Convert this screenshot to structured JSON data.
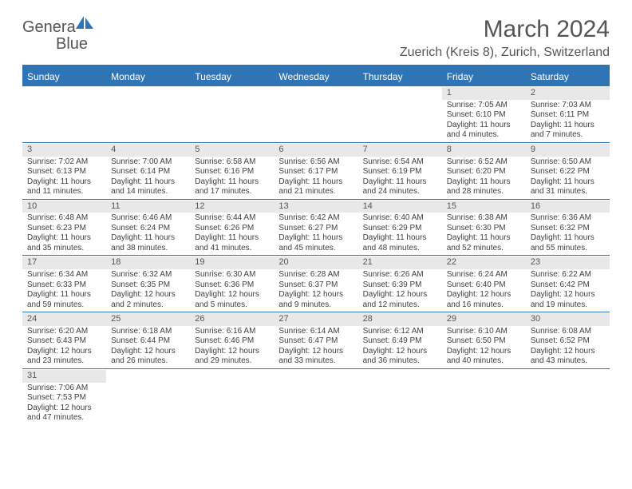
{
  "brand": {
    "name1": "Genera",
    "name2": "Blue"
  },
  "title": "March 2024",
  "location": "Zuerich (Kreis 8), Zurich, Switzerland",
  "colors": {
    "accent": "#2f74b5",
    "text": "#555555",
    "cellbg": "#e8e8e8"
  },
  "weekdays": [
    "Sunday",
    "Monday",
    "Tuesday",
    "Wednesday",
    "Thursday",
    "Friday",
    "Saturday"
  ],
  "weeks": [
    [
      null,
      null,
      null,
      null,
      null,
      {
        "n": "1",
        "sr": "Sunrise: 7:05 AM",
        "ss": "Sunset: 6:10 PM",
        "d1": "Daylight: 11 hours",
        "d2": "and 4 minutes."
      },
      {
        "n": "2",
        "sr": "Sunrise: 7:03 AM",
        "ss": "Sunset: 6:11 PM",
        "d1": "Daylight: 11 hours",
        "d2": "and 7 minutes."
      }
    ],
    [
      {
        "n": "3",
        "sr": "Sunrise: 7:02 AM",
        "ss": "Sunset: 6:13 PM",
        "d1": "Daylight: 11 hours",
        "d2": "and 11 minutes."
      },
      {
        "n": "4",
        "sr": "Sunrise: 7:00 AM",
        "ss": "Sunset: 6:14 PM",
        "d1": "Daylight: 11 hours",
        "d2": "and 14 minutes."
      },
      {
        "n": "5",
        "sr": "Sunrise: 6:58 AM",
        "ss": "Sunset: 6:16 PM",
        "d1": "Daylight: 11 hours",
        "d2": "and 17 minutes."
      },
      {
        "n": "6",
        "sr": "Sunrise: 6:56 AM",
        "ss": "Sunset: 6:17 PM",
        "d1": "Daylight: 11 hours",
        "d2": "and 21 minutes."
      },
      {
        "n": "7",
        "sr": "Sunrise: 6:54 AM",
        "ss": "Sunset: 6:19 PM",
        "d1": "Daylight: 11 hours",
        "d2": "and 24 minutes."
      },
      {
        "n": "8",
        "sr": "Sunrise: 6:52 AM",
        "ss": "Sunset: 6:20 PM",
        "d1": "Daylight: 11 hours",
        "d2": "and 28 minutes."
      },
      {
        "n": "9",
        "sr": "Sunrise: 6:50 AM",
        "ss": "Sunset: 6:22 PM",
        "d1": "Daylight: 11 hours",
        "d2": "and 31 minutes."
      }
    ],
    [
      {
        "n": "10",
        "sr": "Sunrise: 6:48 AM",
        "ss": "Sunset: 6:23 PM",
        "d1": "Daylight: 11 hours",
        "d2": "and 35 minutes."
      },
      {
        "n": "11",
        "sr": "Sunrise: 6:46 AM",
        "ss": "Sunset: 6:24 PM",
        "d1": "Daylight: 11 hours",
        "d2": "and 38 minutes."
      },
      {
        "n": "12",
        "sr": "Sunrise: 6:44 AM",
        "ss": "Sunset: 6:26 PM",
        "d1": "Daylight: 11 hours",
        "d2": "and 41 minutes."
      },
      {
        "n": "13",
        "sr": "Sunrise: 6:42 AM",
        "ss": "Sunset: 6:27 PM",
        "d1": "Daylight: 11 hours",
        "d2": "and 45 minutes."
      },
      {
        "n": "14",
        "sr": "Sunrise: 6:40 AM",
        "ss": "Sunset: 6:29 PM",
        "d1": "Daylight: 11 hours",
        "d2": "and 48 minutes."
      },
      {
        "n": "15",
        "sr": "Sunrise: 6:38 AM",
        "ss": "Sunset: 6:30 PM",
        "d1": "Daylight: 11 hours",
        "d2": "and 52 minutes."
      },
      {
        "n": "16",
        "sr": "Sunrise: 6:36 AM",
        "ss": "Sunset: 6:32 PM",
        "d1": "Daylight: 11 hours",
        "d2": "and 55 minutes."
      }
    ],
    [
      {
        "n": "17",
        "sr": "Sunrise: 6:34 AM",
        "ss": "Sunset: 6:33 PM",
        "d1": "Daylight: 11 hours",
        "d2": "and 59 minutes."
      },
      {
        "n": "18",
        "sr": "Sunrise: 6:32 AM",
        "ss": "Sunset: 6:35 PM",
        "d1": "Daylight: 12 hours",
        "d2": "and 2 minutes."
      },
      {
        "n": "19",
        "sr": "Sunrise: 6:30 AM",
        "ss": "Sunset: 6:36 PM",
        "d1": "Daylight: 12 hours",
        "d2": "and 5 minutes."
      },
      {
        "n": "20",
        "sr": "Sunrise: 6:28 AM",
        "ss": "Sunset: 6:37 PM",
        "d1": "Daylight: 12 hours",
        "d2": "and 9 minutes."
      },
      {
        "n": "21",
        "sr": "Sunrise: 6:26 AM",
        "ss": "Sunset: 6:39 PM",
        "d1": "Daylight: 12 hours",
        "d2": "and 12 minutes."
      },
      {
        "n": "22",
        "sr": "Sunrise: 6:24 AM",
        "ss": "Sunset: 6:40 PM",
        "d1": "Daylight: 12 hours",
        "d2": "and 16 minutes."
      },
      {
        "n": "23",
        "sr": "Sunrise: 6:22 AM",
        "ss": "Sunset: 6:42 PM",
        "d1": "Daylight: 12 hours",
        "d2": "and 19 minutes."
      }
    ],
    [
      {
        "n": "24",
        "sr": "Sunrise: 6:20 AM",
        "ss": "Sunset: 6:43 PM",
        "d1": "Daylight: 12 hours",
        "d2": "and 23 minutes."
      },
      {
        "n": "25",
        "sr": "Sunrise: 6:18 AM",
        "ss": "Sunset: 6:44 PM",
        "d1": "Daylight: 12 hours",
        "d2": "and 26 minutes."
      },
      {
        "n": "26",
        "sr": "Sunrise: 6:16 AM",
        "ss": "Sunset: 6:46 PM",
        "d1": "Daylight: 12 hours",
        "d2": "and 29 minutes."
      },
      {
        "n": "27",
        "sr": "Sunrise: 6:14 AM",
        "ss": "Sunset: 6:47 PM",
        "d1": "Daylight: 12 hours",
        "d2": "and 33 minutes."
      },
      {
        "n": "28",
        "sr": "Sunrise: 6:12 AM",
        "ss": "Sunset: 6:49 PM",
        "d1": "Daylight: 12 hours",
        "d2": "and 36 minutes."
      },
      {
        "n": "29",
        "sr": "Sunrise: 6:10 AM",
        "ss": "Sunset: 6:50 PM",
        "d1": "Daylight: 12 hours",
        "d2": "and 40 minutes."
      },
      {
        "n": "30",
        "sr": "Sunrise: 6:08 AM",
        "ss": "Sunset: 6:52 PM",
        "d1": "Daylight: 12 hours",
        "d2": "and 43 minutes."
      }
    ],
    [
      {
        "n": "31",
        "sr": "Sunrise: 7:06 AM",
        "ss": "Sunset: 7:53 PM",
        "d1": "Daylight: 12 hours",
        "d2": "and 47 minutes."
      },
      null,
      null,
      null,
      null,
      null,
      null
    ]
  ]
}
